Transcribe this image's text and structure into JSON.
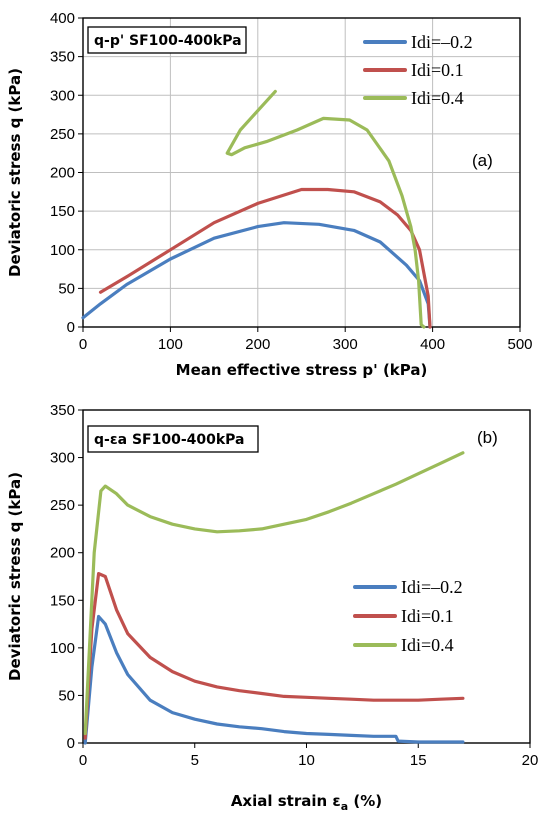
{
  "chart_data": [
    {
      "type": "line",
      "title": "q-p' SF100-400kPa",
      "panel_label": "(a)",
      "xlabel": "Mean effective stress p' (kPa)",
      "ylabel": "Deviatoric stress q (kPa)",
      "xlim": [
        0,
        500
      ],
      "ylim": [
        0,
        400
      ],
      "xticks": [
        "0",
        "100",
        "200",
        "300",
        "400",
        "500"
      ],
      "yticks": [
        "0",
        "50",
        "100",
        "150",
        "200",
        "250",
        "300",
        "350",
        "400"
      ],
      "grid": true,
      "legend_position": "top-right",
      "series": [
        {
          "name": "Idi=–0.2",
          "color": "#4a7ebf",
          "points": [
            [
              0,
              12
            ],
            [
              20,
              30
            ],
            [
              50,
              55
            ],
            [
              100,
              88
            ],
            [
              150,
              115
            ],
            [
              200,
              130
            ],
            [
              230,
              135
            ],
            [
              270,
              133
            ],
            [
              310,
              125
            ],
            [
              340,
              110
            ],
            [
              370,
              80
            ],
            [
              385,
              60
            ],
            [
              395,
              30
            ],
            [
              397,
              0
            ]
          ]
        },
        {
          "name": "Idi=0.1",
          "color": "#c0504d",
          "points": [
            [
              20,
              45
            ],
            [
              50,
              65
            ],
            [
              100,
              100
            ],
            [
              150,
              135
            ],
            [
              200,
              160
            ],
            [
              250,
              178
            ],
            [
              280,
              178
            ],
            [
              310,
              175
            ],
            [
              340,
              162
            ],
            [
              360,
              145
            ],
            [
              375,
              125
            ],
            [
              385,
              100
            ],
            [
              395,
              40
            ],
            [
              397,
              0
            ]
          ]
        },
        {
          "name": "Idi=0.4",
          "color": "#9bbb59",
          "points": [
            [
              390,
              0
            ],
            [
              387,
              3
            ],
            [
              384,
              60
            ],
            [
              380,
              100
            ],
            [
              375,
              130
            ],
            [
              365,
              170
            ],
            [
              350,
              215
            ],
            [
              325,
              255
            ],
            [
              305,
              268
            ],
            [
              275,
              270
            ],
            [
              245,
              255
            ],
            [
              210,
              240
            ],
            [
              185,
              232
            ],
            [
              170,
              223
            ],
            [
              165,
              225
            ],
            [
              180,
              255
            ],
            [
              200,
              280
            ],
            [
              220,
              305
            ]
          ]
        }
      ]
    },
    {
      "type": "line",
      "title": "q-εa SF100-400kPa",
      "panel_label": "(b)",
      "xlabel": "Axial strain ε",
      "xlabel_sub": "a",
      "xlabel_unit": " (%)",
      "ylabel": "Deviatoric stress q (kPa)",
      "xlim": [
        0,
        20
      ],
      "ylim": [
        0,
        350
      ],
      "xticks": [
        "0",
        "5",
        "10",
        "15",
        "20"
      ],
      "yticks": [
        "0",
        "50",
        "100",
        "150",
        "200",
        "250",
        "300",
        "350"
      ],
      "grid": false,
      "legend_position": "center-right",
      "series": [
        {
          "name": "Idi=–0.2",
          "color": "#4a7ebf",
          "points": [
            [
              0.1,
              0
            ],
            [
              0.4,
              80
            ],
            [
              0.7,
              133
            ],
            [
              1.0,
              125
            ],
            [
              1.5,
              95
            ],
            [
              2,
              72
            ],
            [
              3,
              45
            ],
            [
              4,
              32
            ],
            [
              5,
              25
            ],
            [
              6,
              20
            ],
            [
              7,
              17
            ],
            [
              8,
              15
            ],
            [
              9,
              12
            ],
            [
              10,
              10
            ],
            [
              11,
              9
            ],
            [
              12,
              8
            ],
            [
              13,
              7
            ],
            [
              14,
              7
            ],
            [
              14.1,
              2
            ],
            [
              15,
              1
            ],
            [
              16,
              1
            ],
            [
              17,
              1
            ]
          ]
        },
        {
          "name": "Idi=0.1",
          "color": "#c0504d",
          "points": [
            [
              0.1,
              5
            ],
            [
              0.4,
              120
            ],
            [
              0.7,
              178
            ],
            [
              1.0,
              175
            ],
            [
              1.5,
              140
            ],
            [
              2,
              115
            ],
            [
              3,
              90
            ],
            [
              4,
              75
            ],
            [
              5,
              65
            ],
            [
              6,
              59
            ],
            [
              7,
              55
            ],
            [
              8,
              52
            ],
            [
              9,
              49
            ],
            [
              10,
              48
            ],
            [
              11,
              47
            ],
            [
              12,
              46
            ],
            [
              13,
              45
            ],
            [
              14,
              45
            ],
            [
              15,
              45
            ],
            [
              16,
              46
            ],
            [
              17,
              47
            ]
          ]
        },
        {
          "name": "Idi=0.4",
          "color": "#9bbb59",
          "points": [
            [
              0.1,
              10
            ],
            [
              0.5,
              200
            ],
            [
              0.8,
              265
            ],
            [
              1.0,
              270
            ],
            [
              1.5,
              262
            ],
            [
              2,
              250
            ],
            [
              3,
              238
            ],
            [
              4,
              230
            ],
            [
              5,
              225
            ],
            [
              6,
              222
            ],
            [
              7,
              223
            ],
            [
              8,
              225
            ],
            [
              9,
              230
            ],
            [
              10,
              235
            ],
            [
              11,
              243
            ],
            [
              12,
              252
            ],
            [
              13,
              262
            ],
            [
              14,
              272
            ],
            [
              15,
              283
            ],
            [
              16,
              294
            ],
            [
              17,
              305
            ]
          ]
        }
      ]
    }
  ]
}
